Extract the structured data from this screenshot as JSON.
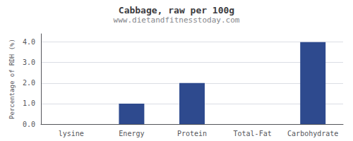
{
  "chart_data": {
    "type": "bar",
    "title": "Cabbage, raw per 100g",
    "subtitle": "www.dietandfitnesstoday.com",
    "categories": [
      "lysine",
      "Energy",
      "Protein",
      "Total-Fat",
      "Carbohydrate"
    ],
    "values": [
      0.0,
      1.0,
      2.0,
      0.0,
      4.0
    ],
    "color": "#2e4a8e",
    "ylabel": "Percentage of RDH (%)",
    "ylim": [
      0,
      4.4
    ],
    "yticks": [
      {
        "value": 0.0,
        "label": "0.0"
      },
      {
        "value": 1.0,
        "label": "1.0"
      },
      {
        "value": 2.0,
        "label": "2.0"
      },
      {
        "value": 3.0,
        "label": "3.0"
      },
      {
        "value": 4.0,
        "label": "4.0"
      }
    ],
    "grid": true
  }
}
